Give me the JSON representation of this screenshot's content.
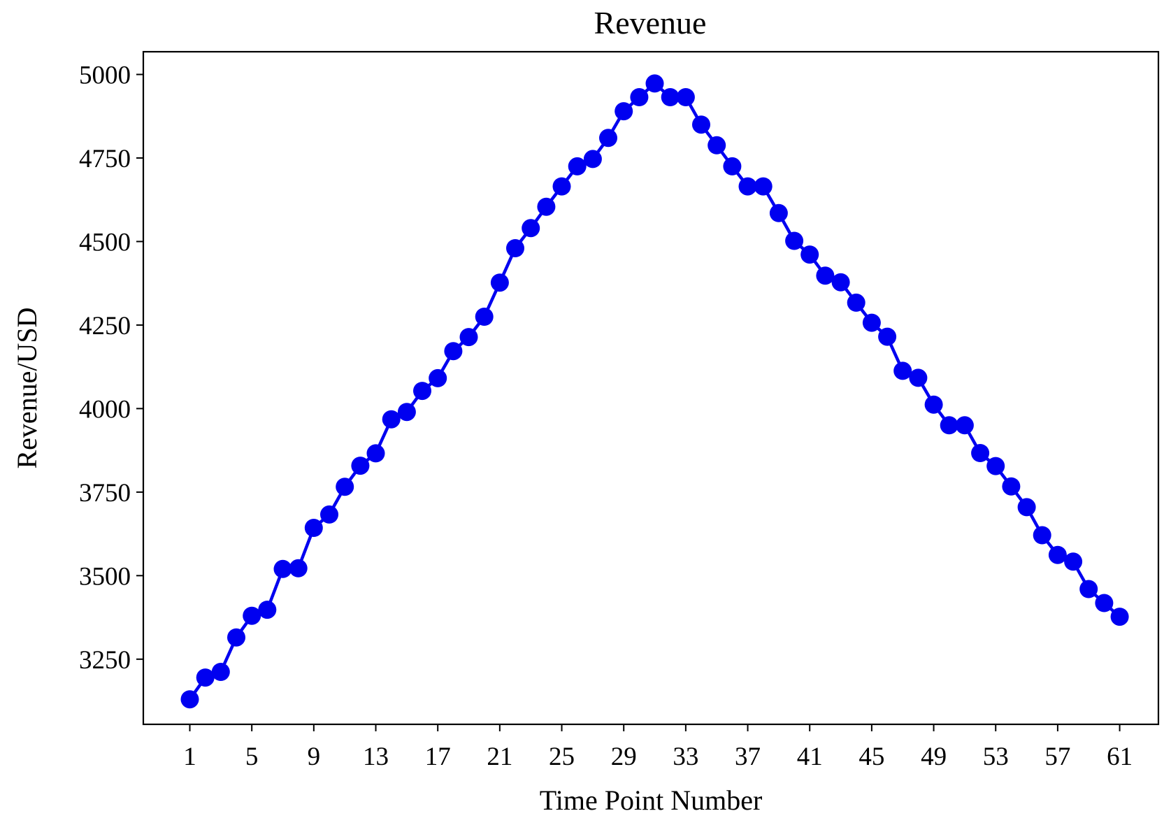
{
  "chart_data": {
    "type": "line",
    "title": "Revenue",
    "xlabel": "Time Point Number",
    "ylabel": "Revenue/USD",
    "xlim": [
      -2,
      63.5
    ],
    "ylim": [
      3055,
      5068
    ],
    "x_ticks": [
      1,
      5,
      9,
      13,
      17,
      21,
      25,
      29,
      33,
      37,
      41,
      45,
      49,
      53,
      57,
      61
    ],
    "y_ticks": [
      3250,
      3500,
      3750,
      4000,
      4250,
      4500,
      4750,
      5000
    ],
    "grid": false,
    "legend": "none",
    "line_color": "#0000f0",
    "series": [
      {
        "x": [
          1,
          2,
          3,
          4,
          5,
          6,
          7,
          8,
          9,
          10,
          11,
          12,
          13,
          14,
          15,
          16,
          17,
          18,
          19,
          20,
          21,
          22,
          23,
          24,
          25,
          26,
          27,
          28,
          29,
          30,
          31,
          32,
          33,
          34,
          35,
          36,
          37,
          38,
          39,
          40,
          41,
          42,
          43,
          44,
          45,
          46,
          47,
          48,
          49,
          50,
          51,
          52,
          53,
          54,
          55,
          56,
          57,
          58,
          59,
          60,
          61
        ],
        "values": [
          3130,
          3195,
          3212,
          3315,
          3380,
          3398,
          3520,
          3522,
          3643,
          3683,
          3766,
          3829,
          3866,
          3968,
          3990,
          4053,
          4091,
          4172,
          4214,
          4275,
          4377,
          4480,
          4540,
          4604,
          4665,
          4725,
          4747,
          4810,
          4890,
          4932,
          4973,
          4932,
          4932,
          4850,
          4788,
          4725,
          4665,
          4665,
          4585,
          4502,
          4461,
          4398,
          4378,
          4317,
          4257,
          4215,
          4113,
          4092,
          4012,
          3950,
          3950,
          3867,
          3828,
          3767,
          3705,
          3621,
          3562,
          3542,
          3460,
          3418,
          3377
        ]
      }
    ]
  }
}
